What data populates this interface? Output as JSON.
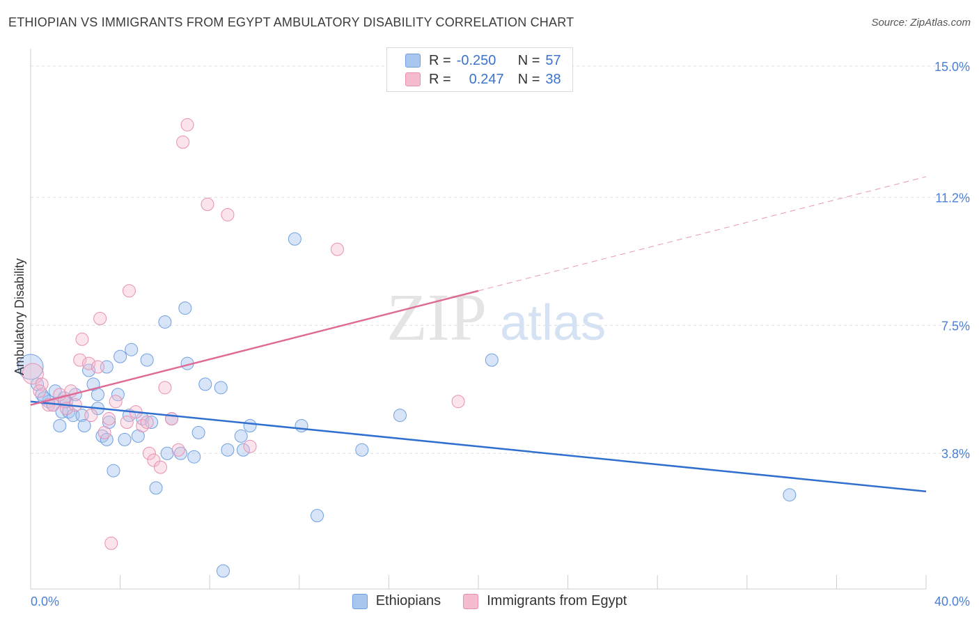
{
  "title": "ETHIOPIAN VS IMMIGRANTS FROM EGYPT AMBULATORY DISABILITY CORRELATION CHART",
  "source": "Source: ZipAtlas.com",
  "watermark": {
    "zip": "ZIP",
    "atlas": "atlas"
  },
  "legend": {
    "r_label": "R =",
    "n_label": "N =",
    "rows": [
      {
        "r": "-0.250",
        "n": "57",
        "color": "#a9c6ef"
      },
      {
        "r": "0.247",
        "n": "38",
        "color": "#f5bcd0"
      }
    ]
  },
  "bottom_legend": [
    {
      "label": "Ethiopians",
      "color": "#a9c6ef"
    },
    {
      "label": "Immigrants from Egypt",
      "color": "#f5bcd0"
    }
  ],
  "chart_data": {
    "type": "scatter",
    "title": "ETHIOPIAN VS IMMIGRANTS FROM EGYPT AMBULATORY DISABILITY CORRELATION CHART",
    "xlabel": "",
    "ylabel": "Ambulatory Disability",
    "xlim": [
      0,
      40
    ],
    "ylim": [
      0,
      15.5
    ],
    "x_tick_labels": [
      "0.0%",
      "40.0%"
    ],
    "y_ticks": [
      3.8,
      7.5,
      11.2,
      15.0
    ],
    "y_tick_labels": [
      "3.8%",
      "7.5%",
      "11.2%",
      "15.0%"
    ],
    "grid": "horizontal dashed",
    "colors": {
      "Ethiopians": "#4a86d8",
      "Immigrants from Egypt": "#e07aa0",
      "eth_line": "#2f6fd0",
      "egy_line": "#de6a95"
    },
    "series": [
      {
        "name": "Ethiopians",
        "points": [
          [
            0.0,
            6.3,
            18
          ],
          [
            0.3,
            5.8,
            9
          ],
          [
            0.5,
            5.5,
            9
          ],
          [
            0.8,
            5.3,
            9
          ],
          [
            1.0,
            5.2,
            9
          ],
          [
            1.1,
            5.6,
            9
          ],
          [
            1.3,
            4.6,
            9
          ],
          [
            1.4,
            5.0,
            9
          ],
          [
            1.5,
            5.4,
            9
          ],
          [
            1.7,
            5.0,
            9
          ],
          [
            1.9,
            4.9,
            9
          ],
          [
            2.0,
            5.5,
            9
          ],
          [
            2.3,
            4.9,
            9
          ],
          [
            2.4,
            4.6,
            9
          ],
          [
            2.6,
            6.2,
            9
          ],
          [
            2.8,
            5.8,
            9
          ],
          [
            3.0,
            5.1,
            9
          ],
          [
            3.0,
            5.5,
            9
          ],
          [
            3.2,
            4.3,
            9
          ],
          [
            3.4,
            4.2,
            9
          ],
          [
            3.5,
            4.7,
            9
          ],
          [
            3.9,
            5.5,
            9
          ],
          [
            3.7,
            3.3,
            9
          ],
          [
            4.2,
            4.2,
            9
          ],
          [
            4.4,
            4.9,
            9
          ],
          [
            4.5,
            6.8,
            9
          ],
          [
            4.8,
            4.3,
            9
          ],
          [
            5.0,
            4.8,
            9
          ],
          [
            5.2,
            6.5,
            9
          ],
          [
            5.4,
            4.7,
            9
          ],
          [
            5.6,
            2.8,
            9
          ],
          [
            6.0,
            7.6,
            9
          ],
          [
            6.1,
            3.8,
            9
          ],
          [
            6.3,
            4.8,
            9
          ],
          [
            6.7,
            3.8,
            9
          ],
          [
            6.9,
            8.0,
            9
          ],
          [
            7.0,
            6.4,
            9
          ],
          [
            7.3,
            3.7,
            9
          ],
          [
            7.5,
            4.4,
            9
          ],
          [
            7.8,
            5.8,
            9
          ],
          [
            4.0,
            6.6,
            9
          ],
          [
            8.5,
            5.7,
            9
          ],
          [
            8.6,
            0.4,
            9
          ],
          [
            8.8,
            3.9,
            9
          ],
          [
            9.4,
            4.3,
            9
          ],
          [
            9.5,
            3.9,
            9
          ],
          [
            9.8,
            4.6,
            9
          ],
          [
            11.8,
            10.0,
            9
          ],
          [
            12.1,
            4.6,
            9
          ],
          [
            12.8,
            2.0,
            9
          ],
          [
            14.8,
            3.9,
            9
          ],
          [
            16.5,
            4.9,
            9
          ],
          [
            20.6,
            6.5,
            9
          ],
          [
            33.9,
            2.6,
            9
          ],
          [
            3.4,
            6.3,
            9
          ],
          [
            1.6,
            5.3,
            9
          ],
          [
            0.6,
            5.4,
            9
          ]
        ]
      },
      {
        "name": "Immigrants from Egypt",
        "points": [
          [
            0.1,
            6.1,
            15
          ],
          [
            0.5,
            5.8,
            9
          ],
          [
            0.8,
            5.2,
            9
          ],
          [
            1.0,
            5.2,
            9
          ],
          [
            1.3,
            5.5,
            9
          ],
          [
            1.5,
            5.3,
            9
          ],
          [
            1.6,
            5.1,
            9
          ],
          [
            1.8,
            5.6,
            9
          ],
          [
            2.0,
            5.2,
            9
          ],
          [
            2.3,
            7.1,
            9
          ],
          [
            2.2,
            6.5,
            9
          ],
          [
            2.6,
            6.4,
            9
          ],
          [
            2.7,
            4.9,
            9
          ],
          [
            3.0,
            6.3,
            9
          ],
          [
            3.1,
            7.7,
            9
          ],
          [
            3.3,
            4.4,
            9
          ],
          [
            3.5,
            4.8,
            9
          ],
          [
            3.8,
            5.3,
            9
          ],
          [
            4.3,
            4.7,
            9
          ],
          [
            4.4,
            8.5,
            9
          ],
          [
            4.7,
            5.0,
            9
          ],
          [
            5.0,
            4.6,
            9
          ],
          [
            5.2,
            4.7,
            9
          ],
          [
            5.3,
            3.8,
            9
          ],
          [
            5.5,
            3.6,
            9
          ],
          [
            5.8,
            3.4,
            9
          ],
          [
            6.0,
            5.7,
            9
          ],
          [
            6.3,
            4.8,
            9
          ],
          [
            6.6,
            3.9,
            9
          ],
          [
            6.8,
            12.8,
            9
          ],
          [
            7.0,
            13.3,
            9
          ],
          [
            7.9,
            11.0,
            9
          ],
          [
            8.8,
            10.7,
            9
          ],
          [
            9.8,
            4.0,
            9
          ],
          [
            13.7,
            9.7,
            9
          ],
          [
            19.1,
            5.3,
            9
          ],
          [
            3.6,
            1.2,
            9
          ],
          [
            0.4,
            5.6,
            9
          ]
        ]
      }
    ],
    "trend_lines": [
      {
        "name": "Ethiopians",
        "x": [
          0,
          40
        ],
        "y": [
          5.3,
          2.7
        ],
        "style": "solid"
      },
      {
        "name": "Immigrants from Egypt",
        "x": [
          0,
          20
        ],
        "y": [
          5.2,
          8.5
        ],
        "style": "solid"
      },
      {
        "name": "Immigrants from Egypt",
        "x": [
          20,
          40
        ],
        "y": [
          8.5,
          11.8
        ],
        "style": "dashed"
      }
    ]
  }
}
